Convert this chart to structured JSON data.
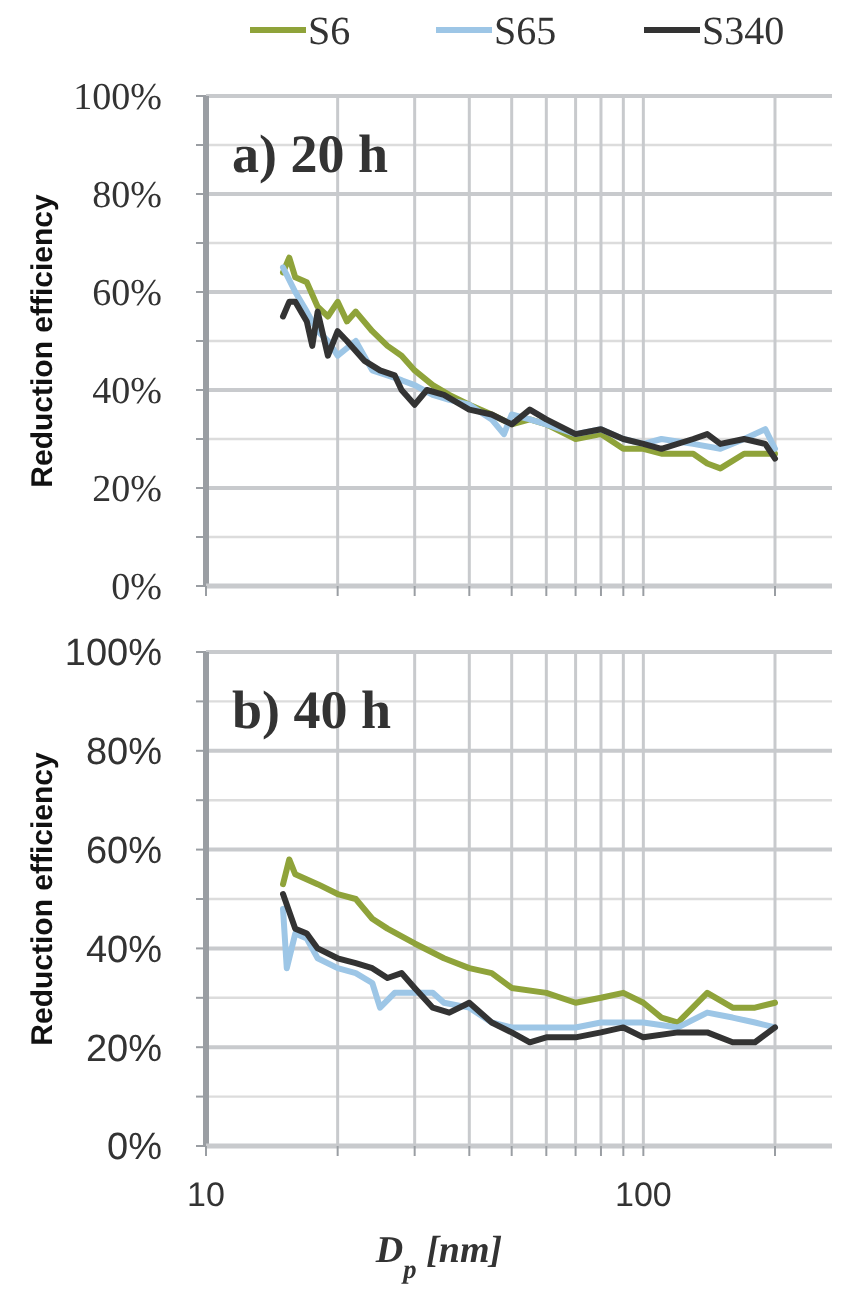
{
  "chart_data": [
    {
      "type": "line",
      "ylabel": "Reduction efficiency",
      "annotations": [
        "a) 20 h"
      ],
      "legend": "top",
      "grid": true,
      "log": "x",
      "tick_labels": "y",
      "xlim": [
        10,
        270
      ],
      "ylim": [
        0,
        100
      ],
      "xticks": [
        {
          "value": 10,
          "label": null
        },
        {
          "value": 20,
          "label": null
        },
        {
          "value": 30,
          "label": null
        },
        {
          "value": 40,
          "label": null
        },
        {
          "value": 50,
          "label": null
        },
        {
          "value": 60,
          "label": null
        },
        {
          "value": 70,
          "label": null
        },
        {
          "value": 80,
          "label": null
        },
        {
          "value": 90,
          "label": null
        },
        {
          "value": 100,
          "label": null
        },
        {
          "value": 200,
          "label": null
        }
      ],
      "yticks": [
        {
          "value": 0,
          "label": "0%"
        },
        {
          "value": 10,
          "label": null
        },
        {
          "value": 20,
          "label": "20%"
        },
        {
          "value": 30,
          "label": null
        },
        {
          "value": 40,
          "label": "40%"
        },
        {
          "value": 50,
          "label": null
        },
        {
          "value": 60,
          "label": "60%"
        },
        {
          "value": 70,
          "label": null
        },
        {
          "value": 80,
          "label": "80%"
        },
        {
          "value": 90,
          "label": null
        },
        {
          "value": 100,
          "label": "100%"
        }
      ],
      "series": [
        {
          "name": "S6",
          "color": "#8fa33a",
          "x": [
            15,
            15.5,
            16,
            17,
            18,
            19,
            20,
            21,
            22,
            24,
            26,
            28,
            30,
            33,
            36,
            40,
            45,
            50,
            55,
            60,
            70,
            80,
            90,
            100,
            110,
            130,
            140,
            150,
            170,
            200
          ],
          "values": [
            64,
            67,
            63,
            62,
            57,
            55,
            58,
            54,
            56,
            52,
            49,
            47,
            44,
            41,
            39,
            37,
            35,
            33,
            34,
            33,
            30,
            31,
            28,
            28,
            27,
            27,
            25,
            24,
            27,
            27
          ]
        },
        {
          "name": "S65",
          "color": "#9dc6e6",
          "x": [
            15,
            16,
            17,
            18,
            19,
            20,
            22,
            24,
            26,
            28,
            30,
            33,
            36,
            40,
            45,
            48,
            50,
            55,
            60,
            70,
            80,
            90,
            100,
            110,
            130,
            150,
            170,
            190,
            200
          ],
          "values": [
            65,
            60,
            56,
            52,
            50,
            47,
            50,
            44,
            43,
            42,
            41,
            39,
            38,
            37,
            34,
            31,
            35,
            34,
            33,
            31,
            32,
            30,
            29,
            30,
            29,
            28,
            30,
            32,
            28
          ]
        },
        {
          "name": "S340",
          "color": "#333333",
          "x": [
            15,
            15.5,
            16,
            17,
            17.5,
            18,
            19,
            20,
            21,
            23,
            25,
            27,
            28,
            30,
            32,
            35,
            40,
            45,
            50,
            55,
            60,
            70,
            80,
            90,
            100,
            110,
            130,
            140,
            150,
            170,
            190,
            200
          ],
          "values": [
            55,
            58,
            58,
            54,
            49,
            56,
            47,
            52,
            50,
            46,
            44,
            43,
            40,
            37,
            40,
            39,
            36,
            35,
            33,
            36,
            34,
            31,
            32,
            30,
            29,
            28,
            30,
            31,
            29,
            30,
            29,
            26
          ]
        }
      ]
    },
    {
      "type": "line",
      "ylabel": "Reduction efficiency",
      "xlabel": "D$_{p}$ [nm]",
      "annotations": [
        "b) 40 h"
      ],
      "grid": true,
      "log": "x",
      "xlim": [
        10,
        270
      ],
      "ylim": [
        0,
        100
      ],
      "xticks": [
        10,
        {
          "value": 20,
          "label": null
        },
        {
          "value": 30,
          "label": null
        },
        {
          "value": 40,
          "label": null
        },
        {
          "value": 50,
          "label": null
        },
        {
          "value": 60,
          "label": null
        },
        {
          "value": 70,
          "label": null
        },
        {
          "value": 80,
          "label": null
        },
        {
          "value": 90,
          "label": null
        },
        100,
        {
          "value": 200,
          "label": null
        }
      ],
      "yticks": [
        {
          "value": 0,
          "label": "0%"
        },
        {
          "value": 10,
          "label": null
        },
        {
          "value": 20,
          "label": "20%"
        },
        {
          "value": 30,
          "label": null
        },
        {
          "value": 40,
          "label": "40%"
        },
        {
          "value": 50,
          "label": null
        },
        {
          "value": 60,
          "label": "60%"
        },
        {
          "value": 70,
          "label": null
        },
        {
          "value": 80,
          "label": "80%"
        },
        {
          "value": 90,
          "label": null
        },
        {
          "value": 100,
          "label": "100%"
        }
      ],
      "series": [
        {
          "color": "#8fa33a",
          "x": [
            15,
            15.5,
            16,
            18,
            20,
            22,
            24,
            26,
            30,
            35,
            40,
            45,
            50,
            60,
            70,
            80,
            90,
            100,
            110,
            120,
            140,
            160,
            180,
            200
          ],
          "values": [
            53,
            58,
            55,
            53,
            51,
            50,
            46,
            44,
            41,
            38,
            36,
            35,
            32,
            31,
            29,
            30,
            31,
            29,
            26,
            25,
            31,
            28,
            28,
            29
          ]
        },
        {
          "color": "#9dc6e6",
          "x": [
            15,
            15.3,
            16,
            17,
            18,
            20,
            22,
            24,
            25,
            27,
            30,
            33,
            35,
            40,
            45,
            50,
            60,
            70,
            80,
            100,
            120,
            140,
            160,
            180,
            200
          ],
          "values": [
            48,
            36,
            43,
            42,
            38,
            36,
            35,
            33,
            28,
            31,
            31,
            31,
            29,
            28,
            25,
            24,
            24,
            24,
            25,
            25,
            24,
            27,
            26,
            25,
            24
          ]
        },
        {
          "color": "#333333",
          "x": [
            15,
            16,
            17,
            18,
            20,
            22,
            24,
            26,
            28,
            30,
            33,
            36,
            40,
            45,
            50,
            55,
            60,
            70,
            80,
            90,
            100,
            120,
            140,
            160,
            180,
            200
          ],
          "values": [
            51,
            44,
            43,
            40,
            38,
            37,
            36,
            34,
            35,
            32,
            28,
            27,
            29,
            25,
            23,
            21,
            22,
            22,
            23,
            24,
            22,
            23,
            23,
            21,
            21,
            24
          ]
        }
      ]
    }
  ]
}
